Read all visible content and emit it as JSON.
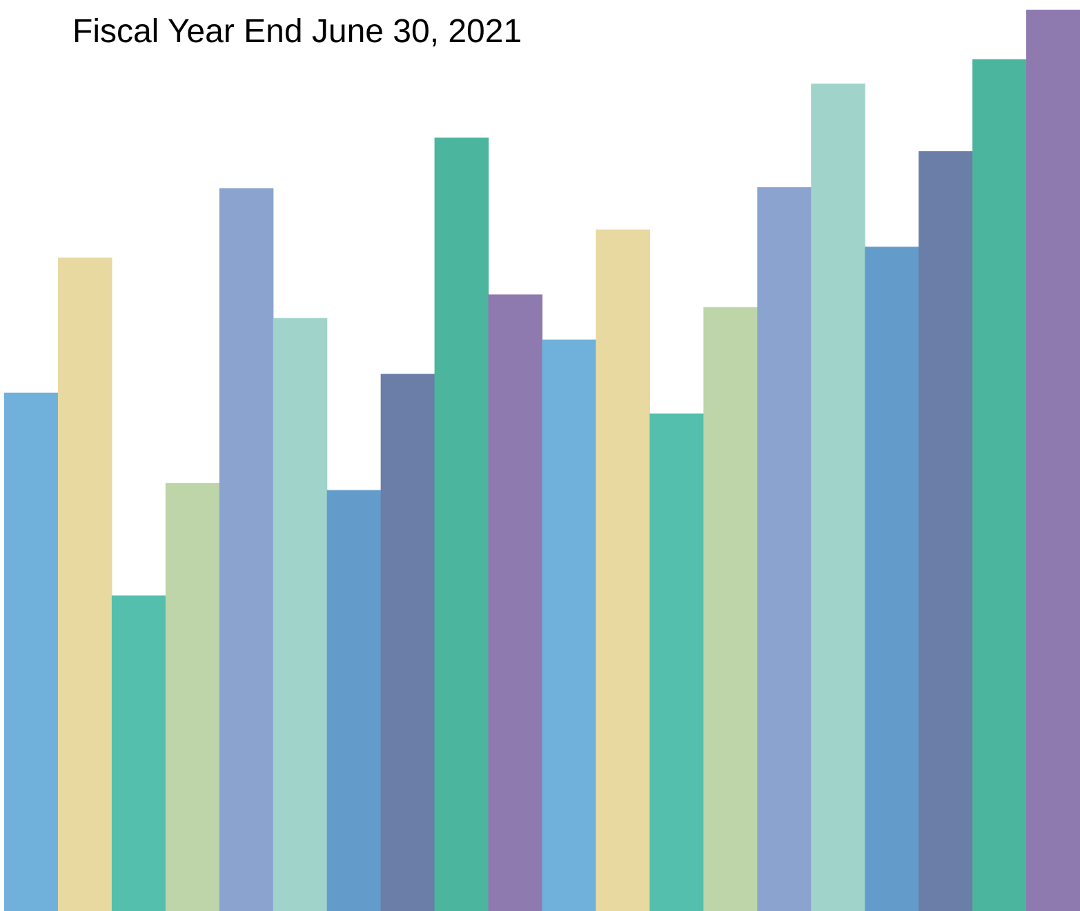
{
  "chart_data": {
    "type": "bar",
    "title": "Fiscal Year End June 30, 2021",
    "xlabel": "",
    "ylabel": "",
    "grid": false,
    "legend": "none",
    "ylim": [
      0,
      100
    ],
    "values": [
      57.5,
      72.5,
      35.0,
      47.5,
      80.2,
      65.8,
      46.7,
      59.6,
      85.8,
      68.4,
      63.4,
      75.6,
      55.2,
      67.0,
      80.3,
      91.8,
      73.7,
      84.3,
      94.5,
      100.0
    ],
    "colors": [
      "#6fb1da",
      "#e8d9a1",
      "#53bfac",
      "#bdd5a9",
      "#8ba3cf",
      "#a0d4ca",
      "#639cca",
      "#6b7ea8",
      "#4cb59d",
      "#8f7ab0",
      "#6fb1da",
      "#e8d9a1",
      "#53bfac",
      "#bdd5a9",
      "#8ba3cf",
      "#a0d4ca",
      "#639cca",
      "#6b7ea8",
      "#4cb59d",
      "#8f7ab0"
    ]
  }
}
